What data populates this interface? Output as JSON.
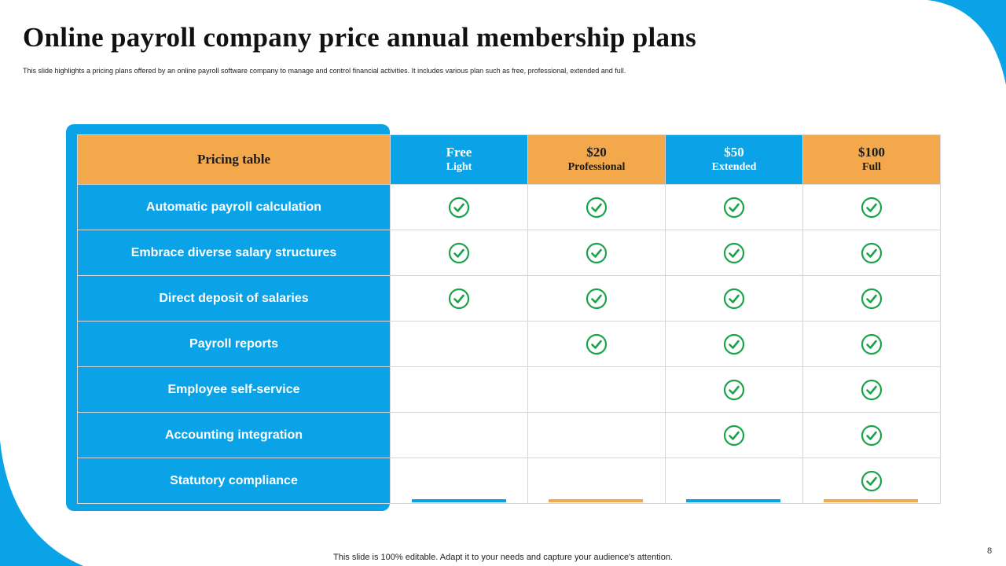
{
  "slide": {
    "title": "Online payroll company price annual membership plans",
    "subtitle": "This slide highlights a pricing plans offered by an online payroll software company to manage and control financial activities. It includes various plan such as free, professional, extended and full.",
    "footer": "This slide is 100% editable. Adapt it to your needs and capture your audience's attention.",
    "page_number": "8"
  },
  "colors": {
    "blue": "#0aa3e8",
    "orange": "#f2a84b",
    "check_green": "#1aa34a"
  },
  "table": {
    "header_label": "Pricing table",
    "plans": [
      {
        "price": "Free",
        "name": "Light",
        "color": "blue"
      },
      {
        "price": "$20",
        "name": "Professional",
        "color": "orange"
      },
      {
        "price": "$50",
        "name": "Extended",
        "color": "blue"
      },
      {
        "price": "$100",
        "name": "Full",
        "color": "orange"
      }
    ],
    "features": [
      {
        "label": "Automatic payroll calculation",
        "included": [
          true,
          true,
          true,
          true
        ]
      },
      {
        "label": "Embrace diverse salary structures",
        "included": [
          true,
          true,
          true,
          true
        ]
      },
      {
        "label": "Direct deposit of salaries",
        "included": [
          true,
          true,
          true,
          true
        ]
      },
      {
        "label": "Payroll reports",
        "included": [
          false,
          true,
          true,
          true
        ]
      },
      {
        "label": "Employee self-service",
        "included": [
          false,
          false,
          true,
          true
        ]
      },
      {
        "label": "Accounting integration",
        "included": [
          false,
          false,
          true,
          true
        ]
      },
      {
        "label": "Statutory compliance",
        "included": [
          false,
          false,
          false,
          true
        ]
      }
    ]
  }
}
